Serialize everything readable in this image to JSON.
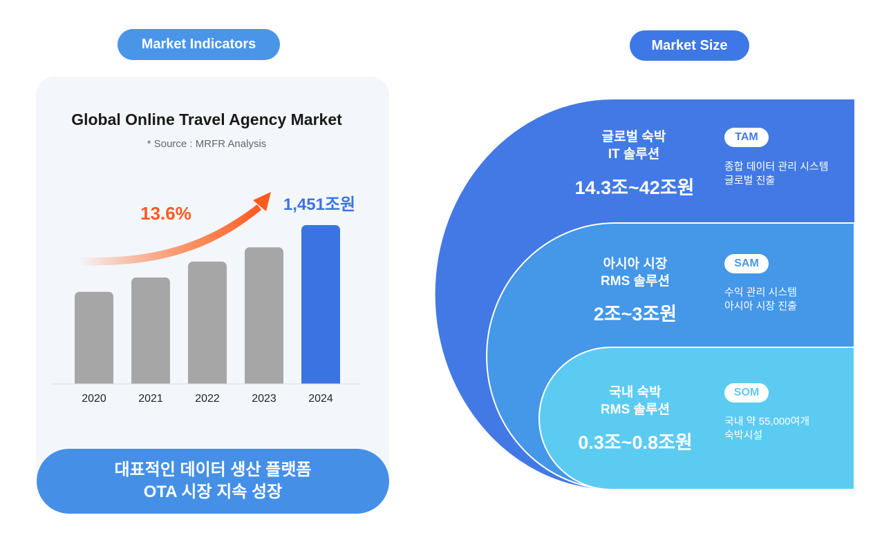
{
  "left_header": "Market Indicators",
  "right_header": "Market Size",
  "chart_data": {
    "type": "bar",
    "title": "Global Online Travel Agency Market",
    "subtitle": "* Source : MRFR Analysis",
    "categories": [
      "2020",
      "2021",
      "2022",
      "2023",
      "2024"
    ],
    "values": [
      0.58,
      0.67,
      0.77,
      0.86,
      1.0
    ],
    "highlight_index": 4,
    "highlight_label": "1,451조원",
    "growth_label": "13.6%",
    "colors": {
      "bar": "#a6a6a6",
      "highlight": "#3b74e2",
      "growth": "#ff5a1f",
      "highlight_label": "#3b74e2"
    }
  },
  "banner": {
    "line1": "대표적인 데이터 생산 플랫폼",
    "line2": "OTA 시장 지속 성장"
  },
  "market": {
    "tiers": [
      {
        "label1": "글로벌 숙박",
        "label2": "IT 솔루션",
        "value": "14.3조~42조원",
        "badge": "TAM",
        "desc1": "종합 데이터 관리 시스템",
        "desc2": "글로벌 진출",
        "color": "#4379e4"
      },
      {
        "label1": "아시아 시장",
        "label2": "RMS 솔루션",
        "value": "2조~3조원",
        "badge": "SAM",
        "desc1": "수익 관리 시스템",
        "desc2": "아시아 시장 진출",
        "color": "#4597e8"
      },
      {
        "label1": "국내 숙박",
        "label2": "RMS 솔루션",
        "value": "0.3조~0.8조원",
        "badge": "SOM",
        "desc1": "국내 약 55,000여개",
        "desc2": "숙박시설",
        "color": "#5ccbf2"
      }
    ]
  }
}
